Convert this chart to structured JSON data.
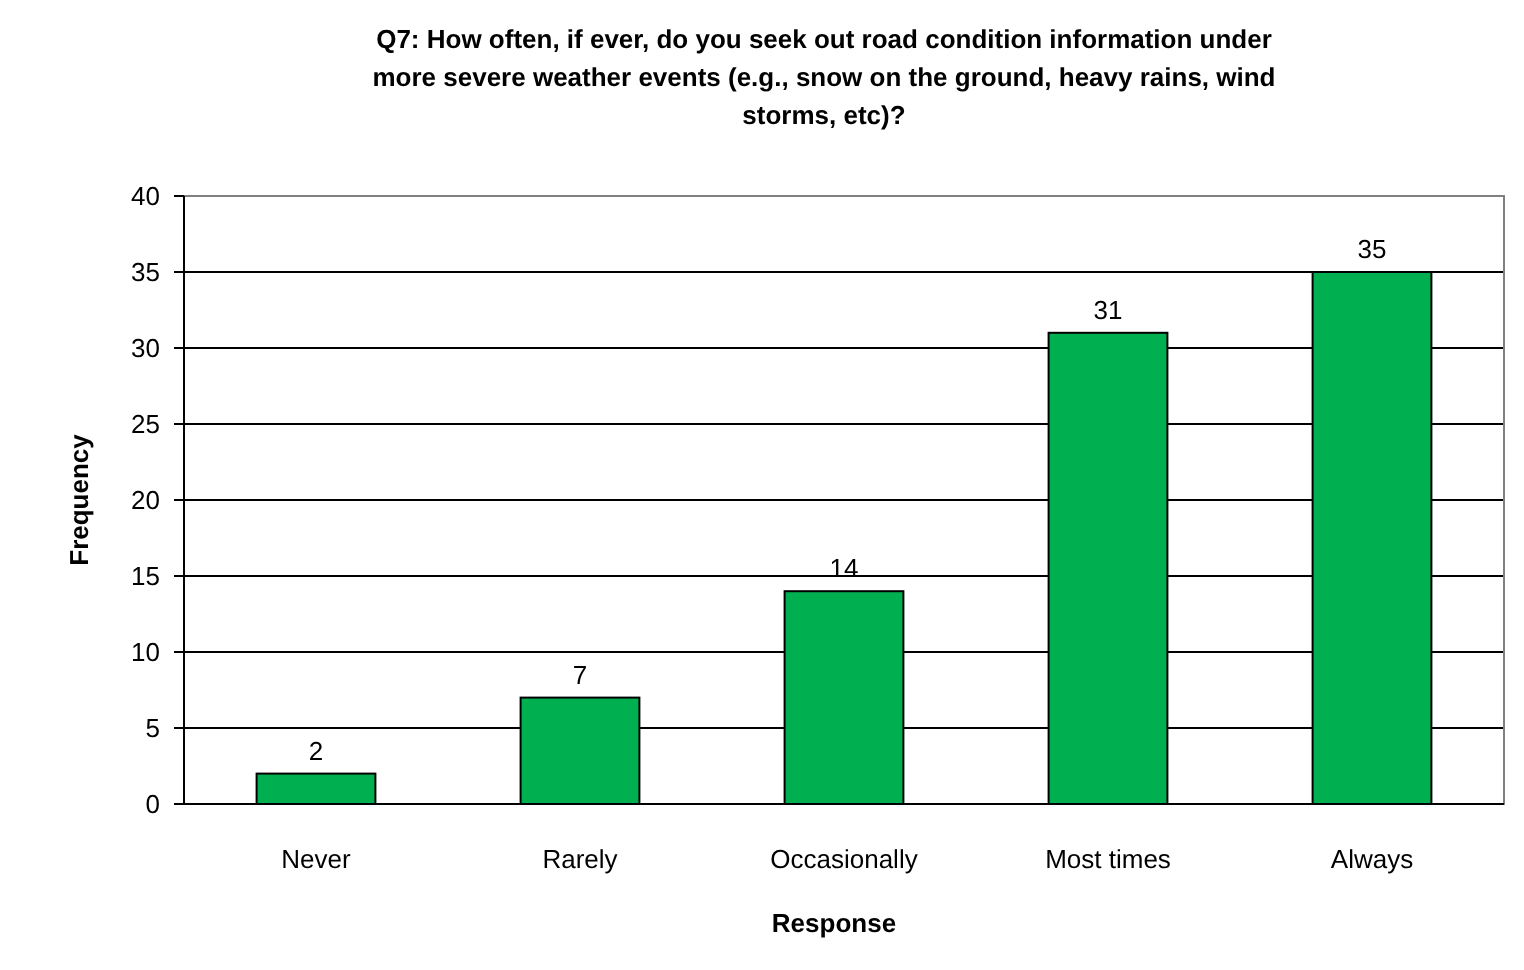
{
  "chart_data": {
    "type": "bar",
    "title": "Q7: How often, if ever, do you seek out road condition information under more severe weather events (e.g., snow on the ground, heavy rains, wind storms, etc)?",
    "xlabel": "Response",
    "ylabel": "Frequency",
    "categories": [
      "Never",
      "Rarely",
      "Occasionally",
      "Most times",
      "Always"
    ],
    "values": [
      2,
      7,
      14,
      31,
      35
    ],
    "color": "#00b050",
    "ylim": [
      0,
      40
    ],
    "yticks": [
      0,
      5,
      10,
      15,
      20,
      25,
      30,
      35,
      40
    ],
    "grid": "y",
    "data_labels": true
  }
}
